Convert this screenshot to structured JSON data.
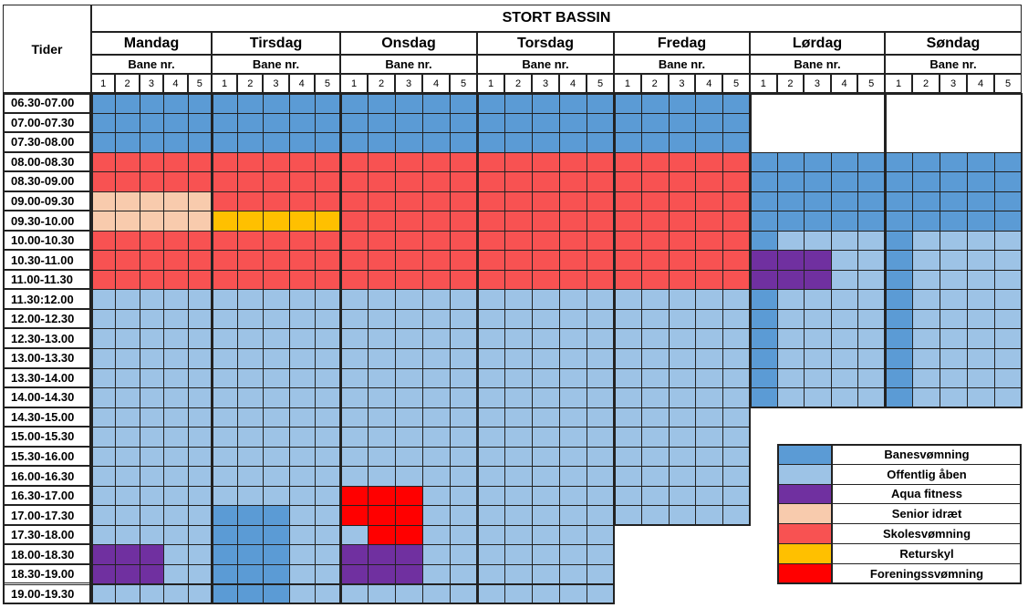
{
  "title": "STORT BASSIN",
  "time_header": "Tider",
  "lane_header": "Bane nr.",
  "lanes": [
    1,
    2,
    3,
    4,
    5
  ],
  "days": [
    "Mandag",
    "Tirsdag",
    "Onsdag",
    "Torsdag",
    "Fredag",
    "Lørdag",
    "Søndag"
  ],
  "times": [
    "06.30-07.00",
    "07.00-07.30",
    "07.30-08.00",
    "08.00-08.30",
    "08.30-09.00",
    "09.00-09.30",
    "09.30-10.00",
    "10.00-10.30",
    "10.30-11.00",
    "11.00-11.30",
    "11.30:12.00",
    "12.00-12.30",
    "12.30-13.00",
    "13.00-13.30",
    "13.30-14.00",
    "14.00-14.30",
    "14.30-15.00",
    "15.00-15.30",
    "15.30-16.00",
    "16.00-16.30",
    "16.30-17.00",
    "17.00-17.30",
    "17.30-18.00",
    "18.00-18.30",
    "18.30-19.00",
    "19.00-19.30"
  ],
  "legend": [
    {
      "name": "Banesvømning",
      "color": "#5b9bd5"
    },
    {
      "name": "Offentlig åben",
      "color": "#9dc3e6"
    },
    {
      "name": "Aqua fitness",
      "color": "#7030a0"
    },
    {
      "name": "Senior idræt",
      "color": "#f8cbad"
    },
    {
      "name": "Skolesvømning",
      "color": "#f85252"
    },
    {
      "name": "Returskyl",
      "color": "#ffc000"
    },
    {
      "name": "Foreningssvømning",
      "color": "#ff0000"
    }
  ],
  "grid": [
    [
      0,
      0,
      0,
      0,
      0,
      0,
      0,
      0,
      0,
      0,
      0,
      0,
      0,
      0,
      0,
      0,
      0,
      0,
      0,
      0,
      0,
      0,
      0,
      0,
      0,
      null,
      null,
      null,
      null,
      null,
      null,
      null,
      null,
      null,
      null
    ],
    [
      0,
      0,
      0,
      0,
      0,
      0,
      0,
      0,
      0,
      0,
      0,
      0,
      0,
      0,
      0,
      0,
      0,
      0,
      0,
      0,
      0,
      0,
      0,
      0,
      0,
      null,
      null,
      null,
      null,
      null,
      null,
      null,
      null,
      null,
      null
    ],
    [
      0,
      0,
      0,
      0,
      0,
      0,
      0,
      0,
      0,
      0,
      0,
      0,
      0,
      0,
      0,
      0,
      0,
      0,
      0,
      0,
      0,
      0,
      0,
      0,
      0,
      null,
      null,
      null,
      null,
      null,
      null,
      null,
      null,
      null,
      null
    ],
    [
      4,
      4,
      4,
      4,
      4,
      4,
      4,
      4,
      4,
      4,
      4,
      4,
      4,
      4,
      4,
      4,
      4,
      4,
      4,
      4,
      4,
      4,
      4,
      4,
      4,
      0,
      0,
      0,
      0,
      0,
      0,
      0,
      0,
      0,
      0
    ],
    [
      4,
      4,
      4,
      4,
      4,
      4,
      4,
      4,
      4,
      4,
      4,
      4,
      4,
      4,
      4,
      4,
      4,
      4,
      4,
      4,
      4,
      4,
      4,
      4,
      4,
      0,
      0,
      0,
      0,
      0,
      0,
      0,
      0,
      0,
      0
    ],
    [
      3,
      3,
      3,
      3,
      3,
      4,
      4,
      4,
      4,
      4,
      4,
      4,
      4,
      4,
      4,
      4,
      4,
      4,
      4,
      4,
      4,
      4,
      4,
      4,
      4,
      0,
      0,
      0,
      0,
      0,
      0,
      0,
      0,
      0,
      0
    ],
    [
      3,
      3,
      3,
      3,
      3,
      5,
      5,
      5,
      5,
      5,
      4,
      4,
      4,
      4,
      4,
      4,
      4,
      4,
      4,
      4,
      4,
      4,
      4,
      4,
      4,
      0,
      0,
      0,
      0,
      0,
      0,
      0,
      0,
      0,
      0
    ],
    [
      4,
      4,
      4,
      4,
      4,
      4,
      4,
      4,
      4,
      4,
      4,
      4,
      4,
      4,
      4,
      4,
      4,
      4,
      4,
      4,
      4,
      4,
      4,
      4,
      4,
      0,
      1,
      1,
      1,
      1,
      0,
      1,
      1,
      1,
      1
    ],
    [
      4,
      4,
      4,
      4,
      4,
      4,
      4,
      4,
      4,
      4,
      4,
      4,
      4,
      4,
      4,
      4,
      4,
      4,
      4,
      4,
      4,
      4,
      4,
      4,
      4,
      2,
      2,
      2,
      1,
      1,
      0,
      1,
      1,
      1,
      1
    ],
    [
      4,
      4,
      4,
      4,
      4,
      4,
      4,
      4,
      4,
      4,
      4,
      4,
      4,
      4,
      4,
      4,
      4,
      4,
      4,
      4,
      4,
      4,
      4,
      4,
      4,
      2,
      2,
      2,
      1,
      1,
      0,
      1,
      1,
      1,
      1
    ],
    [
      1,
      1,
      1,
      1,
      1,
      1,
      1,
      1,
      1,
      1,
      1,
      1,
      1,
      1,
      1,
      1,
      1,
      1,
      1,
      1,
      1,
      1,
      1,
      1,
      1,
      0,
      1,
      1,
      1,
      1,
      0,
      1,
      1,
      1,
      1
    ],
    [
      1,
      1,
      1,
      1,
      1,
      1,
      1,
      1,
      1,
      1,
      1,
      1,
      1,
      1,
      1,
      1,
      1,
      1,
      1,
      1,
      1,
      1,
      1,
      1,
      1,
      0,
      1,
      1,
      1,
      1,
      0,
      1,
      1,
      1,
      1
    ],
    [
      1,
      1,
      1,
      1,
      1,
      1,
      1,
      1,
      1,
      1,
      1,
      1,
      1,
      1,
      1,
      1,
      1,
      1,
      1,
      1,
      1,
      1,
      1,
      1,
      1,
      0,
      1,
      1,
      1,
      1,
      0,
      1,
      1,
      1,
      1
    ],
    [
      1,
      1,
      1,
      1,
      1,
      1,
      1,
      1,
      1,
      1,
      1,
      1,
      1,
      1,
      1,
      1,
      1,
      1,
      1,
      1,
      1,
      1,
      1,
      1,
      1,
      0,
      1,
      1,
      1,
      1,
      0,
      1,
      1,
      1,
      1
    ],
    [
      1,
      1,
      1,
      1,
      1,
      1,
      1,
      1,
      1,
      1,
      1,
      1,
      1,
      1,
      1,
      1,
      1,
      1,
      1,
      1,
      1,
      1,
      1,
      1,
      1,
      0,
      1,
      1,
      1,
      1,
      0,
      1,
      1,
      1,
      1
    ],
    [
      1,
      1,
      1,
      1,
      1,
      1,
      1,
      1,
      1,
      1,
      1,
      1,
      1,
      1,
      1,
      1,
      1,
      1,
      1,
      1,
      1,
      1,
      1,
      1,
      1,
      0,
      1,
      1,
      1,
      1,
      0,
      1,
      1,
      1,
      1
    ],
    [
      1,
      1,
      1,
      1,
      1,
      1,
      1,
      1,
      1,
      1,
      1,
      1,
      1,
      1,
      1,
      1,
      1,
      1,
      1,
      1,
      1,
      1,
      1,
      1,
      1,
      null,
      null,
      null,
      null,
      null,
      null,
      null,
      null,
      null,
      null
    ],
    [
      1,
      1,
      1,
      1,
      1,
      1,
      1,
      1,
      1,
      1,
      1,
      1,
      1,
      1,
      1,
      1,
      1,
      1,
      1,
      1,
      1,
      1,
      1,
      1,
      1,
      null,
      null,
      null,
      null,
      null,
      null,
      null,
      null,
      null,
      null
    ],
    [
      1,
      1,
      1,
      1,
      1,
      1,
      1,
      1,
      1,
      1,
      1,
      1,
      1,
      1,
      1,
      1,
      1,
      1,
      1,
      1,
      1,
      1,
      1,
      1,
      1,
      null,
      null,
      null,
      null,
      null,
      null,
      null,
      null,
      null,
      null
    ],
    [
      1,
      1,
      1,
      1,
      1,
      1,
      1,
      1,
      1,
      1,
      1,
      1,
      1,
      1,
      1,
      1,
      1,
      1,
      1,
      1,
      1,
      1,
      1,
      1,
      1,
      null,
      null,
      null,
      null,
      null,
      null,
      null,
      null,
      null,
      null
    ],
    [
      1,
      1,
      1,
      1,
      1,
      1,
      1,
      1,
      1,
      1,
      6,
      6,
      6,
      1,
      1,
      1,
      1,
      1,
      1,
      1,
      1,
      1,
      1,
      1,
      1,
      null,
      null,
      null,
      null,
      null,
      null,
      null,
      null,
      null,
      null
    ],
    [
      1,
      1,
      1,
      1,
      1,
      0,
      0,
      0,
      1,
      1,
      6,
      6,
      6,
      1,
      1,
      1,
      1,
      1,
      1,
      1,
      1,
      1,
      1,
      1,
      1,
      null,
      null,
      null,
      null,
      null,
      null,
      null,
      null,
      null,
      null
    ],
    [
      1,
      1,
      1,
      1,
      1,
      0,
      0,
      0,
      1,
      1,
      1,
      6,
      6,
      1,
      1,
      1,
      1,
      1,
      1,
      1,
      null,
      null,
      null,
      null,
      null,
      null,
      null,
      null,
      null,
      null,
      null,
      null,
      null,
      null,
      null
    ],
    [
      2,
      2,
      2,
      1,
      1,
      0,
      0,
      0,
      1,
      1,
      2,
      2,
      2,
      1,
      1,
      1,
      1,
      1,
      1,
      1,
      null,
      null,
      null,
      null,
      null,
      null,
      null,
      null,
      null,
      null,
      null,
      null,
      null,
      null,
      null
    ],
    [
      2,
      2,
      2,
      1,
      1,
      0,
      0,
      0,
      1,
      1,
      2,
      2,
      2,
      1,
      1,
      1,
      1,
      1,
      1,
      1,
      null,
      null,
      null,
      null,
      null,
      null,
      null,
      null,
      null,
      null,
      null,
      null,
      null,
      null,
      null
    ],
    [
      1,
      1,
      1,
      1,
      1,
      0,
      0,
      0,
      1,
      1,
      1,
      1,
      1,
      1,
      1,
      1,
      1,
      1,
      1,
      1,
      null,
      null,
      null,
      null,
      null,
      null,
      null,
      null,
      null,
      null,
      null,
      null,
      null,
      null,
      null
    ]
  ]
}
